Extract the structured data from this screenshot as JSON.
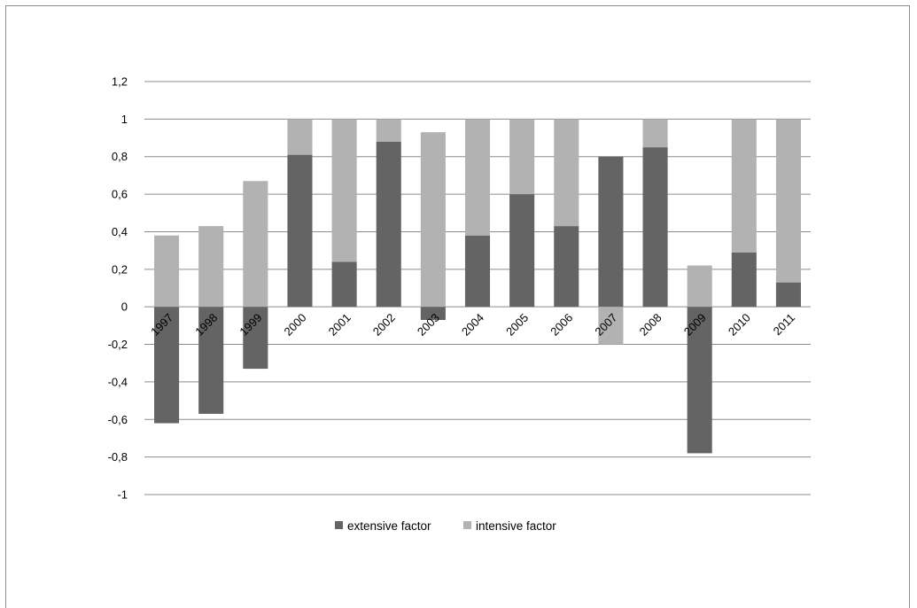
{
  "chart_data": {
    "type": "bar",
    "stacked": true,
    "categories": [
      "1997",
      "1998",
      "1999",
      "2000",
      "2001",
      "2002",
      "2003",
      "2004",
      "2005",
      "2006",
      "2007",
      "2008",
      "2009",
      "2010",
      "2011"
    ],
    "series": [
      {
        "name": "extensive factor",
        "color": "#646464",
        "values": [
          -0.62,
          -0.57,
          -0.33,
          0.81,
          0.24,
          0.88,
          -0.07,
          0.38,
          0.6,
          0.43,
          0.8,
          0.85,
          -0.78,
          0.29,
          0.13
        ]
      },
      {
        "name": "intensive factor",
        "color": "#b2b2b2",
        "values": [
          0.38,
          0.43,
          0.67,
          0.19,
          0.76,
          0.12,
          0.93,
          0.62,
          0.4,
          0.57,
          -0.2,
          0.15,
          0.22,
          0.71,
          0.87
        ]
      }
    ],
    "yticks": [
      "1,2",
      "1",
      "0,8",
      "0,6",
      "0,4",
      "0,2",
      "0",
      "-0,2",
      "-0,4",
      "-0,6",
      "-0,8",
      "-1"
    ],
    "ylim": [
      -1,
      1.2
    ],
    "grid": true,
    "legend": "bottom",
    "title": "",
    "xlabel": "",
    "ylabel": ""
  }
}
